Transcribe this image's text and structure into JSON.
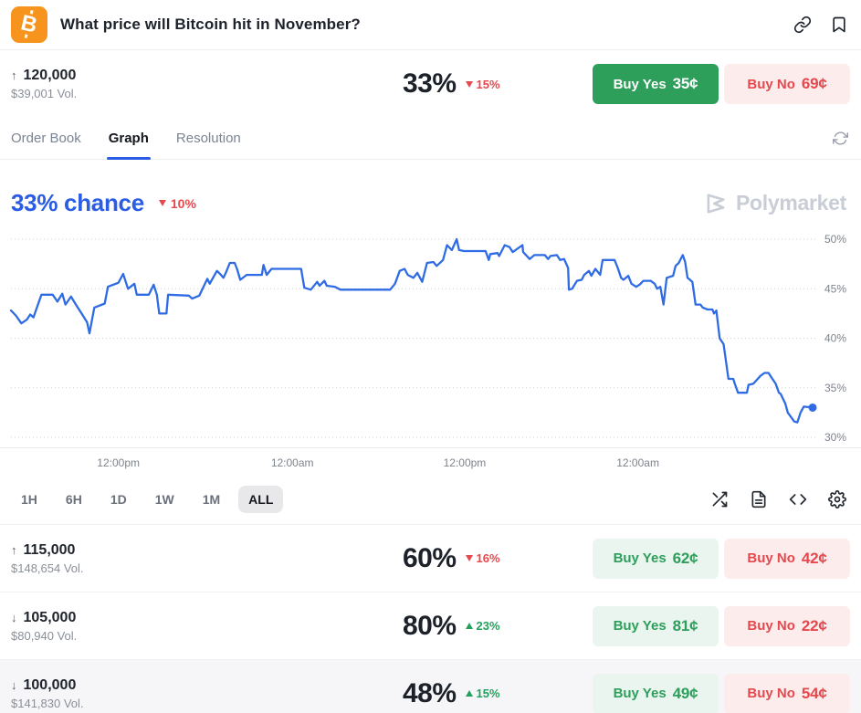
{
  "header": {
    "title": "What price will Bitcoin hit in November?",
    "coin_symbol": "B",
    "icons": [
      "link-icon",
      "bookmark-icon"
    ]
  },
  "tabs": {
    "items": [
      "Order Book",
      "Graph",
      "Resolution"
    ],
    "active": "Graph",
    "right_icon": "refresh-icon"
  },
  "graph": {
    "chance_label": "33% chance",
    "delta": "10%",
    "delta_dir": "down",
    "watermark": "Polymarket",
    "timeframes": [
      "1H",
      "6H",
      "1D",
      "1W",
      "1M",
      "ALL"
    ],
    "active_timeframe": "ALL",
    "toolbar_icons": [
      "shuffle-icon",
      "document-icon",
      "code-icon",
      "settings-icon"
    ]
  },
  "markets": [
    {
      "name": "120,000",
      "direction": "up",
      "volume": "$39,001 Vol.",
      "chance": "33%",
      "delta": "15%",
      "delta_dir": "down",
      "yes_label": "Buy Yes",
      "yes_price": "35¢",
      "no_label": "Buy No",
      "no_price": "69¢",
      "yes_style": "solid",
      "shaded": false
    },
    {
      "name": "115,000",
      "direction": "up",
      "volume": "$148,654 Vol.",
      "chance": "60%",
      "delta": "16%",
      "delta_dir": "down",
      "yes_label": "Buy Yes",
      "yes_price": "62¢",
      "no_label": "Buy No",
      "no_price": "42¢",
      "yes_style": "light",
      "shaded": false
    },
    {
      "name": "105,000",
      "direction": "down",
      "volume": "$80,940 Vol.",
      "chance": "80%",
      "delta": "23%",
      "delta_dir": "up",
      "yes_label": "Buy Yes",
      "yes_price": "81¢",
      "no_label": "Buy No",
      "no_price": "22¢",
      "yes_style": "light",
      "shaded": false
    },
    {
      "name": "100,000",
      "direction": "down",
      "volume": "$141,830 Vol.",
      "chance": "48%",
      "delta": "15%",
      "delta_dir": "up",
      "yes_label": "Buy Yes",
      "yes_price": "49¢",
      "no_label": "Buy No",
      "no_price": "54¢",
      "yes_style": "light",
      "shaded": true
    }
  ],
  "chart_data": {
    "type": "line",
    "title": "33% chance",
    "ylabel": "",
    "xlabel": "",
    "y_range": [
      30,
      50
    ],
    "y_ticks": [
      50,
      45,
      40,
      35,
      30
    ],
    "y_tick_labels": [
      "50%",
      "45%",
      "40%",
      "35%",
      "30%"
    ],
    "x_axis_labels": [
      "12:00pm",
      "12:00am",
      "12:00pm",
      "12:00am"
    ],
    "x_label_pos": [
      13.4,
      35.1,
      56.6,
      78.2
    ],
    "grid": "dotted-horizontal",
    "legend": "none",
    "series": [
      {
        "name": "Yes price (%)",
        "color": "#2f6be4",
        "end_dot": true,
        "points": [
          [
            0,
            42.8
          ],
          [
            0.6,
            42.3
          ],
          [
            1.3,
            41.5
          ],
          [
            2,
            41.9
          ],
          [
            2.4,
            42.4
          ],
          [
            2.8,
            42.1
          ],
          [
            3.8,
            44.4
          ],
          [
            5.2,
            44.4
          ],
          [
            5.8,
            43.7
          ],
          [
            6.4,
            44.5
          ],
          [
            6.8,
            43.4
          ],
          [
            7.5,
            44.2
          ],
          [
            8.1,
            43.4
          ],
          [
            8.9,
            42.4
          ],
          [
            9.5,
            41.6
          ],
          [
            9.8,
            40.5
          ],
          [
            10.4,
            43.1
          ],
          [
            11.7,
            43.5
          ],
          [
            12.1,
            45.2
          ],
          [
            13.4,
            45.6
          ],
          [
            14,
            46.5
          ],
          [
            14.6,
            45
          ],
          [
            15.4,
            45.5
          ],
          [
            15.7,
            44.4
          ],
          [
            17.2,
            44.4
          ],
          [
            17.8,
            45.4
          ],
          [
            18.2,
            44.4
          ],
          [
            18.5,
            42.5
          ],
          [
            19.4,
            42.5
          ],
          [
            19.6,
            44.4
          ],
          [
            22.2,
            44.3
          ],
          [
            22.6,
            44
          ],
          [
            23.5,
            44.3
          ],
          [
            24.5,
            46
          ],
          [
            24.8,
            45.5
          ],
          [
            25.2,
            46.1
          ],
          [
            25.7,
            46.8
          ],
          [
            26.2,
            46.4
          ],
          [
            26.5,
            46.1
          ],
          [
            26.8,
            46.6
          ],
          [
            27.3,
            47.6
          ],
          [
            27.9,
            47.6
          ],
          [
            28.2,
            47
          ],
          [
            28.6,
            45.9
          ],
          [
            29.4,
            46.4
          ],
          [
            31.3,
            46.4
          ],
          [
            31.5,
            47.4
          ],
          [
            31.9,
            46.4
          ],
          [
            32.5,
            47
          ],
          [
            36.2,
            47
          ],
          [
            36.6,
            45.1
          ],
          [
            37.4,
            44.9
          ],
          [
            38.2,
            45.7
          ],
          [
            38.5,
            45.3
          ],
          [
            39.1,
            45.8
          ],
          [
            39.4,
            45.3
          ],
          [
            40.4,
            45.2
          ],
          [
            41.1,
            44.9
          ],
          [
            47.3,
            44.9
          ],
          [
            47.9,
            45.5
          ],
          [
            48.5,
            46.8
          ],
          [
            49.1,
            47
          ],
          [
            49.5,
            46.4
          ],
          [
            50.2,
            46.1
          ],
          [
            50.7,
            46.6
          ],
          [
            51.3,
            45.7
          ],
          [
            51.9,
            47.6
          ],
          [
            52.7,
            47.7
          ],
          [
            53.1,
            47.3
          ],
          [
            53.9,
            47.9
          ],
          [
            54.4,
            49.4
          ],
          [
            55,
            48.9
          ],
          [
            55.6,
            50
          ],
          [
            55.9,
            48.9
          ],
          [
            56.5,
            48.8
          ],
          [
            59.2,
            48.8
          ],
          [
            59.6,
            47.9
          ],
          [
            59.8,
            48.5
          ],
          [
            60.7,
            48.6
          ],
          [
            60.9,
            48.3
          ],
          [
            61.6,
            49.4
          ],
          [
            62.2,
            49.2
          ],
          [
            62.6,
            48.7
          ],
          [
            63.8,
            49.4
          ],
          [
            63.9,
            48.7
          ],
          [
            64.7,
            48
          ],
          [
            65.3,
            48.4
          ],
          [
            66.6,
            48.4
          ],
          [
            67,
            48
          ],
          [
            67.3,
            48.3
          ],
          [
            68.1,
            48.4
          ],
          [
            68.5,
            47.9
          ],
          [
            69,
            48
          ],
          [
            69.5,
            47.1
          ],
          [
            69.6,
            44.9
          ],
          [
            70,
            45
          ],
          [
            70.6,
            45.8
          ],
          [
            71.2,
            45.9
          ],
          [
            71.5,
            46.4
          ],
          [
            72.1,
            46.8
          ],
          [
            72.4,
            46.3
          ],
          [
            72.9,
            47
          ],
          [
            73.5,
            46.4
          ],
          [
            73.8,
            47.9
          ],
          [
            75.3,
            47.9
          ],
          [
            75.7,
            47.1
          ],
          [
            76.1,
            46.1
          ],
          [
            76.4,
            45.9
          ],
          [
            77,
            46.3
          ],
          [
            77.4,
            45.5
          ],
          [
            78,
            45.2
          ],
          [
            78.4,
            45.4
          ],
          [
            78.9,
            45.8
          ],
          [
            79.8,
            45.8
          ],
          [
            80.3,
            45.5
          ],
          [
            80.6,
            45
          ],
          [
            81,
            45.2
          ],
          [
            81.4,
            43.4
          ],
          [
            81.8,
            46.1
          ],
          [
            82.6,
            46.3
          ],
          [
            82.9,
            47.3
          ],
          [
            83.3,
            47.6
          ],
          [
            83.8,
            48.4
          ],
          [
            84.1,
            47.7
          ],
          [
            84.4,
            46.1
          ],
          [
            85,
            45.7
          ],
          [
            85.4,
            43.4
          ],
          [
            86,
            43.4
          ],
          [
            86.3,
            43.1
          ],
          [
            86.9,
            42.9
          ],
          [
            87.5,
            42.9
          ],
          [
            87.7,
            42.5
          ],
          [
            88,
            42.8
          ],
          [
            88.4,
            40
          ],
          [
            88.9,
            39.4
          ],
          [
            89.5,
            35.9
          ],
          [
            90.1,
            35.9
          ],
          [
            90.3,
            35.4
          ],
          [
            90.7,
            34.5
          ],
          [
            91.8,
            34.5
          ],
          [
            92,
            35.3
          ],
          [
            92.6,
            35.4
          ],
          [
            93.5,
            36.2
          ],
          [
            94,
            36.5
          ],
          [
            94.5,
            36.5
          ],
          [
            94.9,
            36
          ],
          [
            95.4,
            35.4
          ],
          [
            95.8,
            34.5
          ],
          [
            96,
            34.4
          ],
          [
            96.6,
            33.4
          ],
          [
            96.9,
            32.5
          ],
          [
            97.7,
            31.6
          ],
          [
            98.1,
            31.5
          ],
          [
            98.5,
            32.5
          ],
          [
            98.9,
            33.1
          ],
          [
            100,
            33
          ]
        ]
      }
    ]
  },
  "colors": {
    "accent_blue": "#2a5ce4",
    "line_blue": "#2f6be4",
    "green": "#2e9e5b",
    "green_light_bg": "#e9f5ee",
    "red": "#e5484d",
    "red_light_bg": "#fcecec",
    "bitcoin_orange": "#f7941d",
    "grid_gray": "#cfd1d5",
    "muted_text": "#8a8f99",
    "watermark_gray": "#c9cdd6"
  }
}
